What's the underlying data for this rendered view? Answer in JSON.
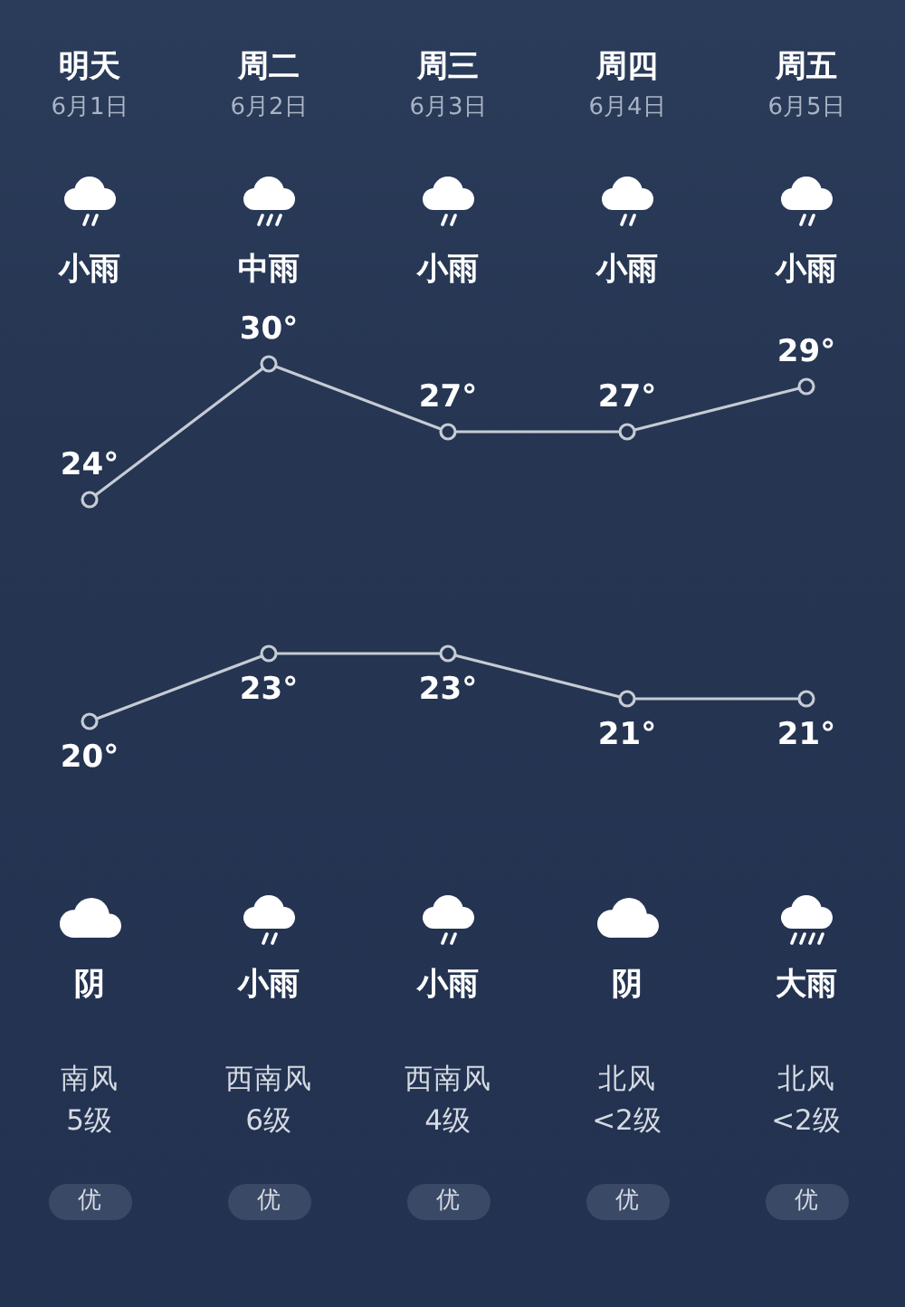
{
  "chart_data": [
    {
      "type": "line",
      "categories": [
        "明天",
        "周二",
        "周三",
        "周四",
        "周五"
      ],
      "series": [
        {
          "color": "#c6cbd4",
          "values": [
            24,
            30,
            27,
            27,
            29
          ],
          "value_labels": [
            "24°",
            "30°",
            "27°",
            "27°",
            "29°"
          ]
        }
      ],
      "tick_labels": "x",
      "marker": "circle",
      "line_style": "solid",
      "annotations": [
        "6月1日",
        "6月2日",
        "6月3日",
        "6月4日",
        "6月5日",
        "小雨",
        "中雨",
        "小雨",
        "小雨",
        "小雨"
      ]
    },
    {
      "type": "line",
      "categories": [
        null,
        null,
        null,
        null,
        null
      ],
      "series": [
        {
          "color": "#c6cbd4",
          "values": [
            20,
            23,
            23,
            21,
            21
          ],
          "value_labels": [
            "20°",
            "23°",
            "23°",
            "21°",
            "21°"
          ]
        }
      ],
      "marker": "circle",
      "line_style": "solid",
      "annotations": [
        "阴",
        "小雨",
        "小雨",
        "阴",
        "大雨",
        "南风",
        "西南风",
        "西南风",
        "北风",
        "北风",
        "5级",
        "6级",
        "4级",
        "<2级",
        "<2级",
        "优",
        "优",
        "优",
        "优",
        "优"
      ]
    }
  ]
}
